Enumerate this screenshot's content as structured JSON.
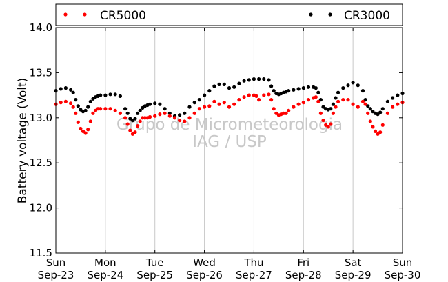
{
  "chart_data": {
    "type": "scatter",
    "ylabel": "Battery voltage (Volt)",
    "ylim": [
      11.5,
      14.0
    ],
    "yticks": [
      11.5,
      12.0,
      12.5,
      13.0,
      13.5,
      14.0
    ],
    "ytick_labels": [
      "11.5",
      "12.0",
      "12.5",
      "13.0",
      "13.5",
      "14.0"
    ],
    "xlim": [
      0,
      7
    ],
    "xticks": [
      0,
      1,
      2,
      3,
      4,
      5,
      6,
      7
    ],
    "xtick_labels": [
      [
        "Sun",
        "Sep-23"
      ],
      [
        "Mon",
        "Sep-24"
      ],
      [
        "Tue",
        "Sep-25"
      ],
      [
        "Wed",
        "Sep-26"
      ],
      [
        "Thu",
        "Sep-27"
      ],
      [
        "Fri",
        "Sep-28"
      ],
      [
        "Sat",
        "Sep-29"
      ],
      [
        "Sun",
        "Sep-30"
      ]
    ],
    "x_unit": "days since Sun Sep-23",
    "grid": "vertical",
    "legend": "top",
    "watermark": [
      "Grupo de Micrometeorologia",
      "IAG / USP"
    ],
    "series": [
      {
        "name": "CR5000",
        "color": "#ff0000",
        "x": [
          0.0,
          0.1,
          0.2,
          0.3,
          0.35,
          0.4,
          0.45,
          0.5,
          0.55,
          0.6,
          0.65,
          0.7,
          0.75,
          0.8,
          0.85,
          0.9,
          1.0,
          1.1,
          1.2,
          1.3,
          1.4,
          1.45,
          1.5,
          1.55,
          1.6,
          1.65,
          1.7,
          1.75,
          1.8,
          1.85,
          1.9,
          2.0,
          2.1,
          2.2,
          2.3,
          2.4,
          2.5,
          2.6,
          2.7,
          2.8,
          2.9,
          3.0,
          3.1,
          3.2,
          3.3,
          3.4,
          3.5,
          3.6,
          3.7,
          3.8,
          3.9,
          4.0,
          4.05,
          4.1,
          4.2,
          4.3,
          4.35,
          4.4,
          4.45,
          4.5,
          4.55,
          4.6,
          4.65,
          4.7,
          4.8,
          4.9,
          5.0,
          5.1,
          5.2,
          5.25,
          5.3,
          5.35,
          5.4,
          5.45,
          5.5,
          5.55,
          5.6,
          5.65,
          5.7,
          5.8,
          5.9,
          6.0,
          6.1,
          6.2,
          6.25,
          6.3,
          6.35,
          6.4,
          6.45,
          6.5,
          6.55,
          6.6,
          6.7,
          6.8,
          6.9,
          7.0
        ],
        "y": [
          13.15,
          13.17,
          13.18,
          13.16,
          13.12,
          13.05,
          12.95,
          12.88,
          12.85,
          12.83,
          12.87,
          12.96,
          13.05,
          13.08,
          13.1,
          13.1,
          13.1,
          13.1,
          13.08,
          13.05,
          13.0,
          12.93,
          12.86,
          12.82,
          12.84,
          12.91,
          12.96,
          13.0,
          13.0,
          13.0,
          13.01,
          13.02,
          13.04,
          13.05,
          13.02,
          13.0,
          12.97,
          12.96,
          13.0,
          13.05,
          13.1,
          13.12,
          13.13,
          13.18,
          13.15,
          13.17,
          13.12,
          13.15,
          13.2,
          13.23,
          13.25,
          13.25,
          13.24,
          13.2,
          13.25,
          13.26,
          13.2,
          13.1,
          13.05,
          13.03,
          13.04,
          13.05,
          13.05,
          13.08,
          13.12,
          13.15,
          13.17,
          13.2,
          13.22,
          13.23,
          13.18,
          13.05,
          12.97,
          12.92,
          12.9,
          12.93,
          13.05,
          13.12,
          13.18,
          13.2,
          13.2,
          13.15,
          13.12,
          13.18,
          13.15,
          13.05,
          12.96,
          12.9,
          12.85,
          12.82,
          12.84,
          12.92,
          13.05,
          13.12,
          13.15,
          13.17
        ]
      },
      {
        "name": "CR3000",
        "color": "#000000",
        "x": [
          0.0,
          0.1,
          0.2,
          0.3,
          0.35,
          0.4,
          0.45,
          0.5,
          0.55,
          0.6,
          0.65,
          0.7,
          0.75,
          0.8,
          0.85,
          0.9,
          1.0,
          1.1,
          1.2,
          1.3,
          1.4,
          1.45,
          1.5,
          1.55,
          1.6,
          1.65,
          1.7,
          1.75,
          1.8,
          1.85,
          1.9,
          2.0,
          2.1,
          2.2,
          2.3,
          2.4,
          2.5,
          2.6,
          2.7,
          2.8,
          2.9,
          3.0,
          3.1,
          3.2,
          3.3,
          3.4,
          3.5,
          3.6,
          3.7,
          3.8,
          3.9,
          4.0,
          4.1,
          4.2,
          4.3,
          4.35,
          4.4,
          4.45,
          4.5,
          4.55,
          4.6,
          4.65,
          4.7,
          4.8,
          4.9,
          5.0,
          5.1,
          5.2,
          5.25,
          5.3,
          5.35,
          5.4,
          5.45,
          5.5,
          5.55,
          5.6,
          5.65,
          5.7,
          5.8,
          5.9,
          6.0,
          6.1,
          6.2,
          6.25,
          6.3,
          6.35,
          6.4,
          6.45,
          6.5,
          6.55,
          6.6,
          6.7,
          6.8,
          6.9,
          7.0
        ],
        "y": [
          13.3,
          13.32,
          13.33,
          13.31,
          13.28,
          13.2,
          13.13,
          13.09,
          13.07,
          13.08,
          13.12,
          13.18,
          13.21,
          13.23,
          13.24,
          13.25,
          13.25,
          13.26,
          13.26,
          13.24,
          13.1,
          13.05,
          12.99,
          12.97,
          12.99,
          13.05,
          13.08,
          13.11,
          13.13,
          13.14,
          13.15,
          13.16,
          13.15,
          13.1,
          13.05,
          13.02,
          13.03,
          13.05,
          13.12,
          13.17,
          13.2,
          13.25,
          13.3,
          13.35,
          13.37,
          13.37,
          13.33,
          13.34,
          13.38,
          13.41,
          13.42,
          13.43,
          13.43,
          13.43,
          13.42,
          13.35,
          13.3,
          13.27,
          13.26,
          13.27,
          13.28,
          13.29,
          13.3,
          13.31,
          13.32,
          13.33,
          13.34,
          13.34,
          13.33,
          13.28,
          13.2,
          13.12,
          13.1,
          13.09,
          13.1,
          13.15,
          13.22,
          13.28,
          13.33,
          13.36,
          13.39,
          13.36,
          13.3,
          13.2,
          13.13,
          13.1,
          13.07,
          13.05,
          13.04,
          13.06,
          13.1,
          13.18,
          13.22,
          13.25,
          13.27
        ]
      }
    ]
  }
}
